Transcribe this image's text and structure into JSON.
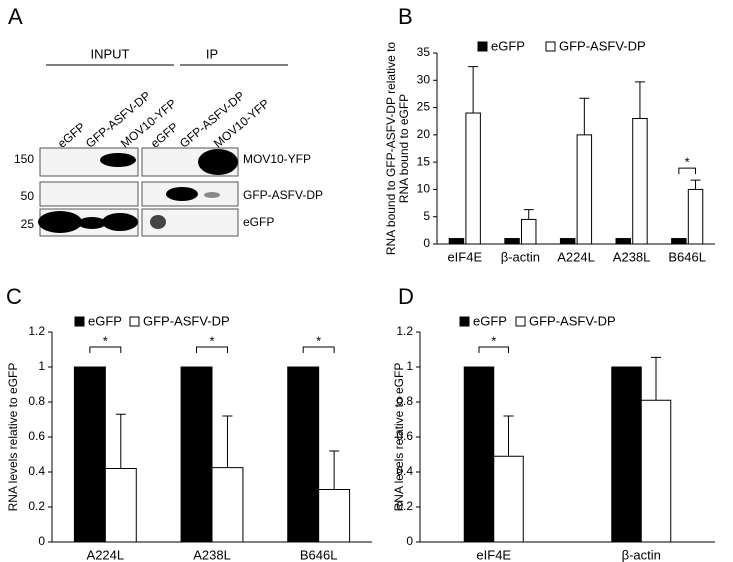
{
  "panel_labels": [
    "A",
    "B",
    "C",
    "D"
  ],
  "blot": {
    "groups": [
      "INPUT",
      "IP"
    ],
    "lanes": [
      "eGFP",
      "GFP-ASFV-DP",
      "MOV10-YFP",
      "eGFP",
      "GFP-ASFV-DP",
      "MOV10-YFP"
    ],
    "markers": [
      "150",
      "50",
      "25"
    ],
    "rows": [
      "MOV10-YFP",
      "GFP-ASFV-DP",
      "eGFP"
    ]
  },
  "chart_data": [
    {
      "type": "bar",
      "ylabel": [
        "RNA bound to GFP-ASFV-DP relative to",
        "RNA bound to eGFP"
      ],
      "categories": [
        "eIF4E",
        "β-actin",
        "A224L",
        "A238L",
        "B646L"
      ],
      "series": [
        {
          "name": "eGFP",
          "color": "#000000",
          "values": [
            1,
            1,
            1,
            1,
            1
          ]
        },
        {
          "name": "GFP-ASFV-DP",
          "color": "#ffffff",
          "values": [
            24,
            4.5,
            20,
            23,
            10
          ],
          "errors": [
            8.5,
            1.8,
            6.7,
            6.7,
            1.7
          ]
        }
      ],
      "ylim": [
        0,
        35
      ],
      "yticks": [
        0,
        5,
        10,
        15,
        20,
        25,
        30,
        35
      ],
      "annotations": [
        {
          "label": "*",
          "category": "B646L"
        }
      ]
    },
    {
      "type": "bar",
      "ylabel": [
        "RNA levels relative to eGFP"
      ],
      "categories": [
        "A224L",
        "A238L",
        "B646L"
      ],
      "series": [
        {
          "name": "eGFP",
          "color": "#000000",
          "values": [
            1,
            1,
            1
          ]
        },
        {
          "name": "GFP-ASFV-DP",
          "color": "#ffffff",
          "values": [
            0.42,
            0.425,
            0.3
          ],
          "errors": [
            0.31,
            0.295,
            0.22
          ]
        }
      ],
      "ylim": [
        0,
        1.2
      ],
      "yticks": [
        0,
        0.2,
        0.4,
        0.6,
        0.8,
        1,
        1.2
      ],
      "annotations": [
        {
          "label": "*",
          "category": "A224L"
        },
        {
          "label": "*",
          "category": "A238L"
        },
        {
          "label": "*",
          "category": "B646L"
        }
      ]
    },
    {
      "type": "bar",
      "ylabel": [
        "RNA levels relative to eGFP"
      ],
      "categories": [
        "eIF4E",
        "β-actin"
      ],
      "series": [
        {
          "name": "eGFP",
          "color": "#000000",
          "values": [
            1,
            1
          ]
        },
        {
          "name": "GFP-ASFV-DP",
          "color": "#ffffff",
          "values": [
            0.49,
            0.81
          ],
          "errors": [
            0.23,
            0.245
          ]
        }
      ],
      "ylim": [
        0,
        1.2
      ],
      "yticks": [
        0,
        0.2,
        0.4,
        0.6,
        0.8,
        1,
        1.2
      ],
      "annotations": [
        {
          "label": "*",
          "category": "eIF4E"
        }
      ]
    }
  ]
}
